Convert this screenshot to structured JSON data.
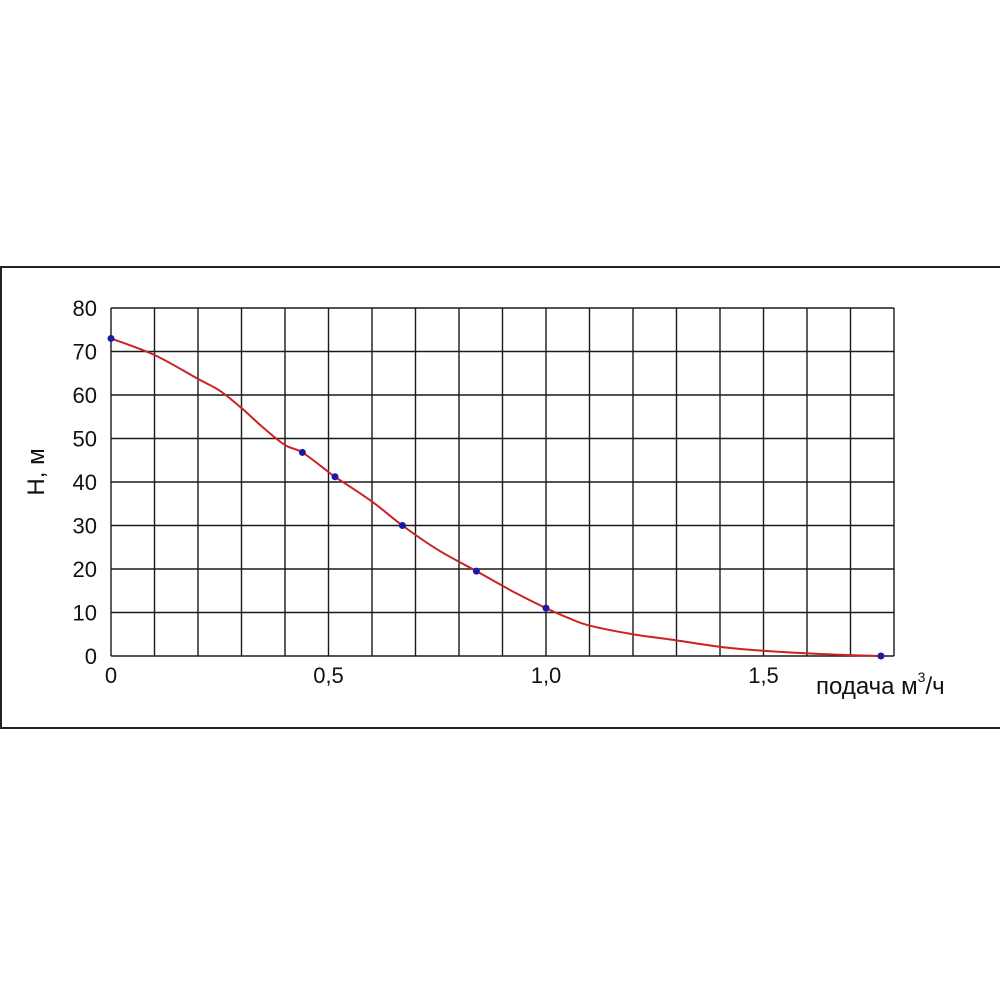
{
  "chart_data": {
    "type": "line",
    "ylabel": "H, м",
    "xlabel": {
      "text": "подача  м",
      "superscript": "3",
      "suffix": "/ч"
    },
    "xlim": [
      0,
      1.8
    ],
    "ylim": [
      0,
      80
    ],
    "x_grid_step": 0.1,
    "y_grid_step": 10,
    "grid": true,
    "x_ticks": [
      {
        "value": 0,
        "label": "0"
      },
      {
        "value": 0.5,
        "label": "0,5"
      },
      {
        "value": 1.0,
        "label": "1,0"
      },
      {
        "value": 1.5,
        "label": "1,5"
      }
    ],
    "y_ticks": [
      {
        "value": 0,
        "label": "0"
      },
      {
        "value": 10,
        "label": "10"
      },
      {
        "value": 20,
        "label": "20"
      },
      {
        "value": 30,
        "label": "30"
      },
      {
        "value": 40,
        "label": "40"
      },
      {
        "value": 50,
        "label": "50"
      },
      {
        "value": 60,
        "label": "60"
      },
      {
        "value": 70,
        "label": "70"
      },
      {
        "value": 80,
        "label": "80"
      }
    ],
    "series": [
      {
        "curve": [
          [
            0,
            73
          ],
          [
            0.1,
            69.2
          ],
          [
            0.2,
            63.7
          ],
          [
            0.25,
            61
          ],
          [
            0.3,
            57
          ],
          [
            0.35,
            52.5
          ],
          [
            0.4,
            48.5
          ],
          [
            0.44,
            46.8
          ],
          [
            0.5,
            42.3
          ],
          [
            0.515,
            41.2
          ],
          [
            0.6,
            35.5
          ],
          [
            0.67,
            30
          ],
          [
            0.75,
            24.5
          ],
          [
            0.84,
            19.5
          ],
          [
            0.93,
            14.5
          ],
          [
            1.0,
            11
          ],
          [
            1.05,
            8.8
          ],
          [
            1.1,
            7
          ],
          [
            1.2,
            5
          ],
          [
            1.3,
            3.6
          ],
          [
            1.4,
            2.1
          ],
          [
            1.5,
            1.2
          ],
          [
            1.6,
            0.6
          ],
          [
            1.7,
            0.2
          ],
          [
            1.77,
            0
          ]
        ],
        "markers": [
          [
            0,
            73
          ],
          [
            0.44,
            46.8
          ],
          [
            0.515,
            41.2
          ],
          [
            0.67,
            30
          ],
          [
            0.84,
            19.5
          ],
          [
            1.0,
            11
          ],
          [
            1.77,
            0
          ]
        ],
        "line_color": "#cc2222",
        "marker_color": "#1a1aaa"
      }
    ]
  }
}
